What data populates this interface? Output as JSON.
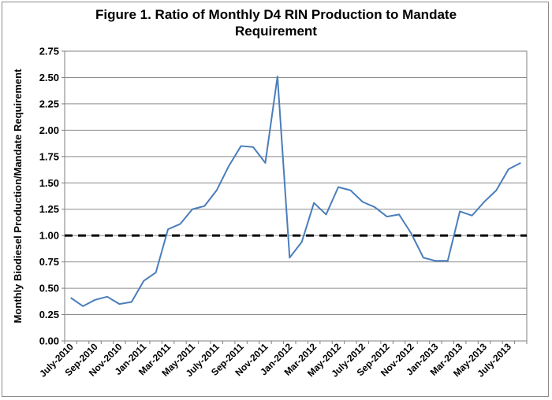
{
  "chart_data": {
    "type": "line",
    "title_line1": "Figure 1. Ratio of Monthly D4 RIN Production to Mandate",
    "title_line2": "Requirement",
    "xlabel": "",
    "ylabel": "Monthly Biodiesel Production/Mandate Requirement",
    "ylim": [
      0,
      2.75
    ],
    "yticks": [
      "0.00",
      "0.25",
      "0.50",
      "0.75",
      "1.00",
      "1.25",
      "1.50",
      "1.75",
      "2.00",
      "2.25",
      "2.50",
      "2.75"
    ],
    "grid": true,
    "legend": "none",
    "x_tick_labels": [
      "July-2010",
      "Sep-2010",
      "Nov-2010",
      "Jan-2011",
      "Mar-2011",
      "May-2011",
      "July-2011",
      "Sep-2011",
      "Nov-2011",
      "Jan-2012",
      "Mar-2012",
      "May-2012",
      "July-2012",
      "Sep-2012",
      "Nov-2012",
      "Jan-2013",
      "Mar-2013",
      "May-2013",
      "July-2013"
    ],
    "x": [
      "2010-07",
      "2010-08",
      "2010-09",
      "2010-10",
      "2010-11",
      "2010-12",
      "2011-01",
      "2011-02",
      "2011-03",
      "2011-04",
      "2011-05",
      "2011-06",
      "2011-07",
      "2011-08",
      "2011-09",
      "2011-10",
      "2011-11",
      "2011-12",
      "2012-01",
      "2012-02",
      "2012-03",
      "2012-04",
      "2012-05",
      "2012-06",
      "2012-07",
      "2012-08",
      "2012-09",
      "2012-10",
      "2012-11",
      "2012-12",
      "2013-01",
      "2013-02",
      "2013-03",
      "2013-04",
      "2013-05",
      "2013-06",
      "2013-07",
      "2013-08"
    ],
    "series": [
      {
        "color": "#4a7ebb",
        "values": [
          0.41,
          0.33,
          0.39,
          0.42,
          0.35,
          0.37,
          0.57,
          0.65,
          1.06,
          1.11,
          1.25,
          1.28,
          1.43,
          1.66,
          1.85,
          1.84,
          1.69,
          2.51,
          0.79,
          0.94,
          1.31,
          1.2,
          1.46,
          1.43,
          1.32,
          1.27,
          1.18,
          1.2,
          1.02,
          0.79,
          0.76,
          0.76,
          1.23,
          1.19,
          1.32,
          1.43,
          1.63,
          1.69
        ]
      }
    ],
    "reference_line": {
      "y": 1.0,
      "color": "#000000",
      "style": "dashed"
    }
  }
}
